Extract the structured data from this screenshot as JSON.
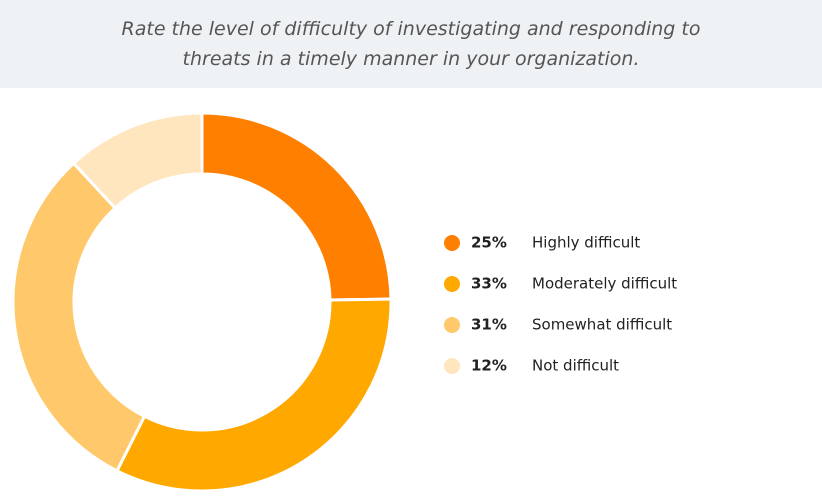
{
  "chart_data": {
    "type": "donut",
    "title": "Rate the level of difficulty of investigating and responding to threats in a timely manner in your organization.",
    "categories": [
      "Highly difficult",
      "Moderately difficult",
      "Somewhat difficult",
      "Not difficult"
    ],
    "values": [
      25,
      33,
      31,
      12
    ],
    "value_labels": [
      "25%",
      "33%",
      "31%",
      "12%"
    ],
    "colors": [
      "#ff7f00",
      "#ffa800",
      "#ffc96b",
      "#ffe6bf"
    ],
    "legend": "right"
  }
}
